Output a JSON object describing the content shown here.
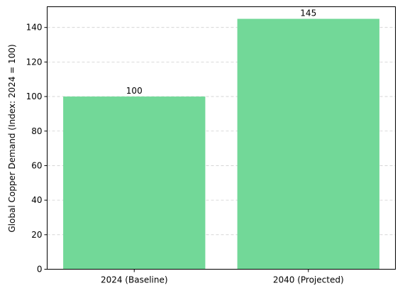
{
  "chart_data": {
    "type": "bar",
    "title": "",
    "xlabel": "",
    "ylabel": "Global Copper Demand (Index: 2024 = 100)",
    "categories": [
      "2024 (Baseline)",
      "2040 (Projected)"
    ],
    "values": [
      100,
      145
    ],
    "data_labels": [
      "100",
      "145"
    ],
    "ylim": [
      0,
      152
    ],
    "yticks": [
      0,
      20,
      40,
      60,
      80,
      100,
      120,
      140
    ],
    "grid": "y-dashed",
    "bar_color": "#72d898"
  }
}
